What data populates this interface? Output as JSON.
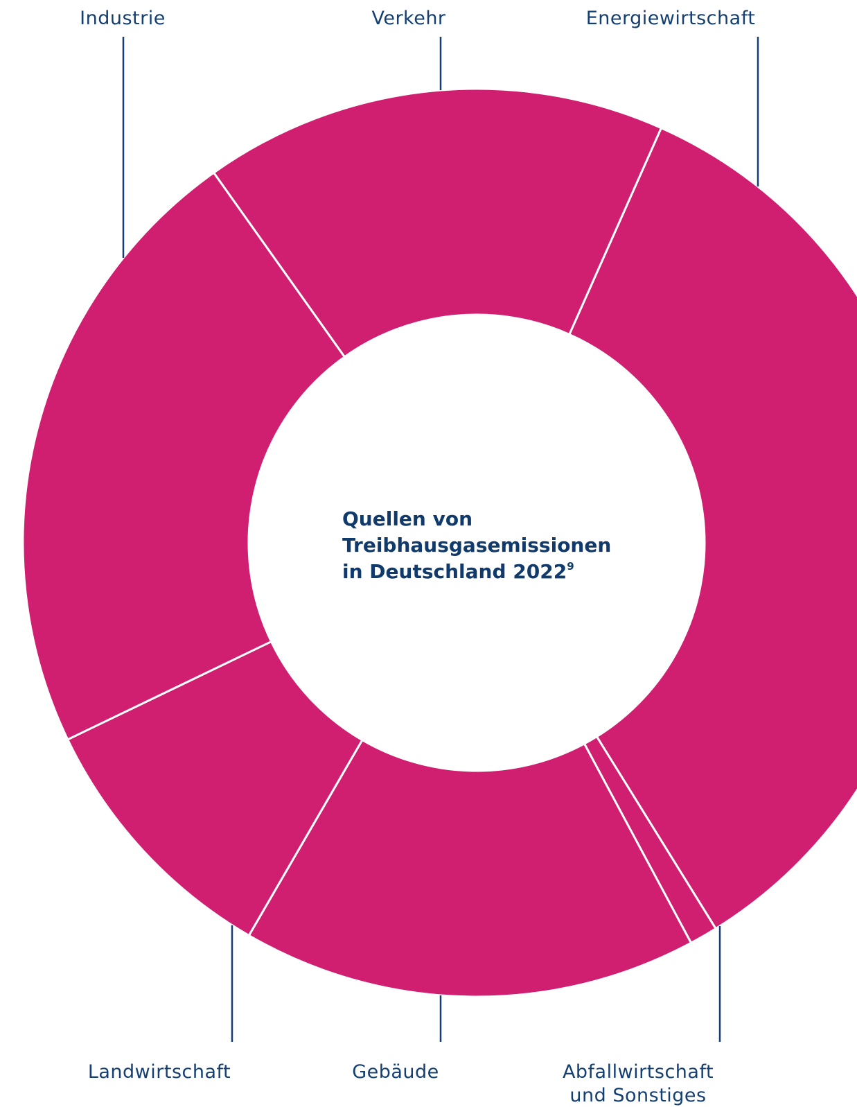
{
  "chart_data": {
    "type": "pie",
    "variant": "donut",
    "title": "Quellen von Treibhausgasemissionen in Deutschland 2022",
    "title_lines": [
      "Quellen von",
      "Treibhausgasemissionen",
      "in Deutschland 2022"
    ],
    "title_superscript": "9",
    "categories": [
      "Energiewirtschaft",
      "Abfallwirtschaft und Sonstiges",
      "Gebäude",
      "Landwirtschaft",
      "Industrie",
      "Verkehr"
    ],
    "values": [
      34.5,
      1.0,
      16.2,
      9.5,
      22.3,
      16.5
    ],
    "value_unit": "percent (estimated from slice angles)",
    "labels_display": [
      {
        "key": "Industrie",
        "lines": [
          "Industrie"
        ]
      },
      {
        "key": "Verkehr",
        "lines": [
          "Verkehr"
        ]
      },
      {
        "key": "Energiewirtschaft",
        "lines": [
          "Energiewirtschaft"
        ]
      },
      {
        "key": "Landwirtschaft",
        "lines": [
          "Landwirtschaft"
        ]
      },
      {
        "key": "Gebäude",
        "lines": [
          "Gebäude"
        ]
      },
      {
        "key": "Abfallwirtschaft und Sonstiges",
        "lines": [
          "Abfallwirtschaft",
          "und Sonstiges"
        ]
      }
    ],
    "colors": {
      "slice": "#d01f70",
      "separator": "#ffffff",
      "text": "#143f73",
      "title": "#0f3a6b"
    },
    "legend": "none",
    "grid": false
  }
}
